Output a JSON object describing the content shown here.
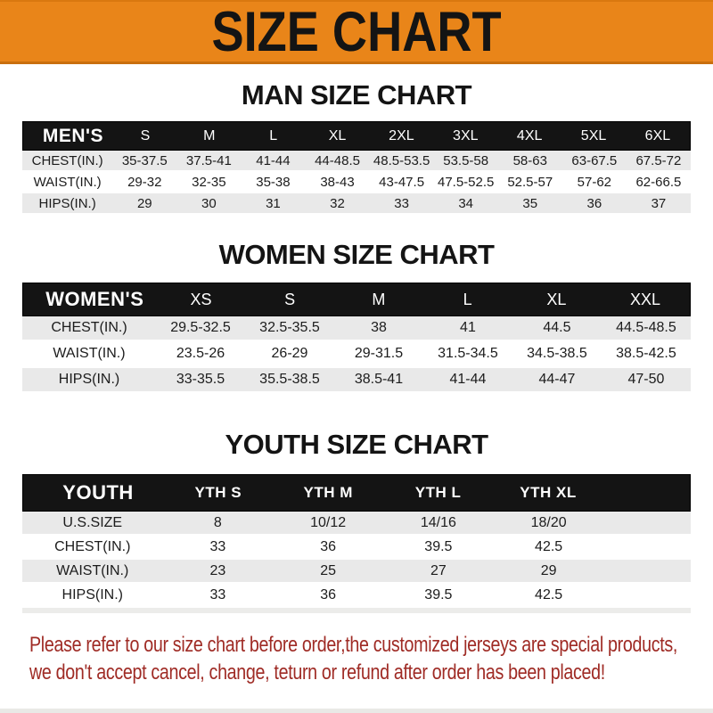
{
  "banner": {
    "title": "SIZE CHART"
  },
  "colors": {
    "banner_orange": "#E98519",
    "header_bar_black": "#141414",
    "row_stripe_gray": "#E9E9E9",
    "footer_red": "#9F2B25"
  },
  "sections": {
    "men": {
      "heading": "MAN SIZE CHART",
      "table_label": "MEN'S",
      "sizes": [
        "S",
        "M",
        "L",
        "XL",
        "2XL",
        "3XL",
        "4XL",
        "5XL",
        "6XL"
      ],
      "rows": [
        {
          "label": "CHEST(IN.)",
          "values": [
            "35-37.5",
            "37.5-41",
            "41-44",
            "44-48.5",
            "48.5-53.5",
            "53.5-58",
            "58-63",
            "63-67.5",
            "67.5-72"
          ]
        },
        {
          "label": "WAIST(IN.)",
          "values": [
            "29-32",
            "32-35",
            "35-38",
            "38-43",
            "43-47.5",
            "47.5-52.5",
            "52.5-57",
            "57-62",
            "62-66.5"
          ]
        },
        {
          "label": "HIPS(IN.)",
          "values": [
            "29",
            "30",
            "31",
            "32",
            "33",
            "34",
            "35",
            "36",
            "37"
          ]
        }
      ]
    },
    "women": {
      "heading": "WOMEN SIZE CHART",
      "table_label": "WOMEN'S",
      "sizes": [
        "XS",
        "S",
        "M",
        "L",
        "XL",
        "XXL"
      ],
      "rows": [
        {
          "label": "CHEST(IN.)",
          "values": [
            "29.5-32.5",
            "32.5-35.5",
            "38",
            "41",
            "44.5",
            "44.5-48.5"
          ]
        },
        {
          "label": "WAIST(IN.)",
          "values": [
            "23.5-26",
            "26-29",
            "29-31.5",
            "31.5-34.5",
            "34.5-38.5",
            "38.5-42.5"
          ]
        },
        {
          "label": "HIPS(IN.)",
          "values": [
            "33-35.5",
            "35.5-38.5",
            "38.5-41",
            "41-44",
            "44-47",
            "47-50"
          ]
        }
      ]
    },
    "youth": {
      "heading": "YOUTH SIZE CHART",
      "table_label": "YOUTH",
      "sizes": [
        "YTH S",
        "YTH M",
        "YTH L",
        "YTH XL"
      ],
      "rows": [
        {
          "label": "U.S.SIZE",
          "values": [
            "8",
            "10/12",
            "14/16",
            "18/20"
          ]
        },
        {
          "label": "CHEST(IN.)",
          "values": [
            "33",
            "36",
            "39.5",
            "42.5"
          ]
        },
        {
          "label": "WAIST(IN.)",
          "values": [
            "23",
            "25",
            "27",
            "29"
          ]
        },
        {
          "label": "HIPS(IN.)",
          "values": [
            "33",
            "36",
            "39.5",
            "42.5"
          ]
        }
      ]
    }
  },
  "footer": {
    "line1": "Please refer to our size chart before order,the customized jerseys are special products,",
    "line2": "we don't accept cancel, change, teturn or refund after order has been placed!"
  }
}
